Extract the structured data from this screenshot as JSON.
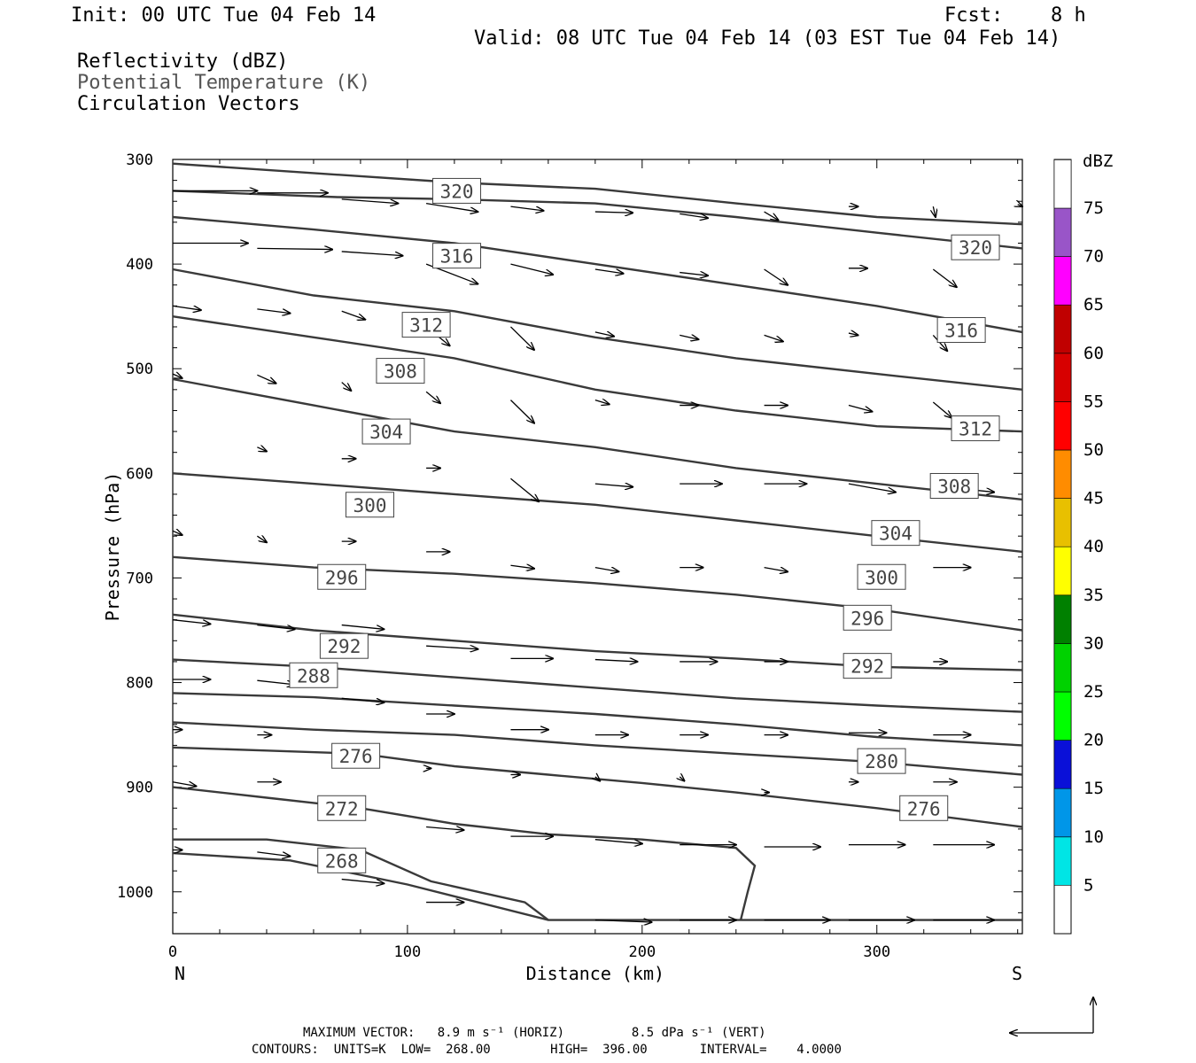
{
  "header": {
    "init": "Init: 00 UTC Tue 04 Feb 14",
    "fcst_label": "Fcst:",
    "fcst_value": "8 h",
    "valid": "Valid: 08 UTC Tue 04 Feb 14 (03 EST Tue 04 Feb 14)"
  },
  "fields": {
    "reflectivity": "Reflectivity (dBZ)",
    "theta": "Potential Temperature (K)",
    "vectors": "Circulation Vectors"
  },
  "footer": {
    "max_vector": "MAXIMUM VECTOR:   8.9 m s⁻¹ (HORIZ)         8.5 dPa s⁻¹ (VERT)",
    "contours": "CONTOURS:  UNITS=K  LOW=  268.00        HIGH=  396.00       INTERVAL=    4.0000"
  },
  "chart_data": {
    "type": "line",
    "xlabel": "Distance (km)",
    "ylabel": "Pressure (hPa)",
    "xlim": [
      0,
      362
    ],
    "ylim": [
      1040,
      300
    ],
    "x_ticks": [
      0,
      100,
      200,
      300
    ],
    "y_ticks": [
      300,
      400,
      500,
      600,
      700,
      800,
      900,
      1000
    ],
    "endpoint_labels": {
      "left": "N",
      "right": "S"
    },
    "contours": [
      {
        "level": "320",
        "points": [
          [
            0,
            304
          ],
          [
            60,
            313
          ],
          [
            120,
            322
          ],
          [
            180,
            328
          ],
          [
            240,
            342
          ],
          [
            300,
            355
          ],
          [
            362,
            362
          ]
        ],
        "label_at": [
          121,
          330
        ]
      },
      {
        "level": "320",
        "points": [
          [
            0,
            330
          ],
          [
            70,
            336
          ],
          [
            120,
            338
          ],
          [
            180,
            342
          ],
          [
            240,
            355
          ],
          [
            300,
            370
          ],
          [
            362,
            385
          ]
        ],
        "label_at": [
          342,
          384
        ]
      },
      {
        "level": "316",
        "points": [
          [
            0,
            355
          ],
          [
            60,
            367
          ],
          [
            120,
            380
          ],
          [
            180,
            400
          ],
          [
            240,
            420
          ],
          [
            300,
            440
          ],
          [
            362,
            465
          ]
        ],
        "label_at": [
          121,
          392
        ]
      },
      {
        "level": "316",
        "points": [
          [
            0,
            405
          ],
          [
            60,
            430
          ],
          [
            120,
            445
          ],
          [
            180,
            470
          ],
          [
            240,
            490
          ],
          [
            300,
            505
          ],
          [
            362,
            520
          ]
        ],
        "label_at": [
          336,
          463
        ]
      },
      {
        "level": "312",
        "points": [
          [
            0,
            450
          ],
          [
            60,
            470
          ],
          [
            120,
            490
          ],
          [
            180,
            520
          ],
          [
            240,
            540
          ],
          [
            300,
            555
          ],
          [
            362,
            560
          ]
        ],
        "label_at": [
          108,
          458
        ]
      },
      {
        "level": "312",
        "points": [
          [
            0,
            510
          ],
          [
            60,
            535
          ],
          [
            120,
            560
          ],
          [
            180,
            575
          ],
          [
            240,
            595
          ],
          [
            300,
            610
          ],
          [
            362,
            625
          ]
        ],
        "label_at": [
          342,
          557
        ]
      },
      {
        "level": "308",
        "points": [
          [
            0,
            600
          ],
          [
            60,
            610
          ],
          [
            120,
            620
          ],
          [
            180,
            630
          ],
          [
            240,
            645
          ],
          [
            300,
            660
          ],
          [
            362,
            675
          ]
        ],
        "label_at": [
          97,
          502
        ]
      },
      {
        "level": "308",
        "points": [
          [
            0,
            680
          ],
          [
            60,
            690
          ],
          [
            120,
            696
          ],
          [
            180,
            705
          ],
          [
            240,
            716
          ],
          [
            300,
            730
          ],
          [
            362,
            750
          ]
        ],
        "label_at": [
          333,
          612
        ]
      },
      {
        "level": "304",
        "points": [
          [
            0,
            735
          ],
          [
            60,
            750
          ],
          [
            120,
            760
          ],
          [
            180,
            770
          ],
          [
            240,
            777
          ],
          [
            300,
            785
          ],
          [
            362,
            788
          ]
        ],
        "label_at": [
          91,
          560
        ]
      },
      {
        "level": "304",
        "points": [
          [
            0,
            778
          ],
          [
            60,
            785
          ],
          [
            120,
            795
          ],
          [
            180,
            805
          ],
          [
            240,
            815
          ],
          [
            300,
            822
          ],
          [
            362,
            828
          ]
        ],
        "label_at": [
          308,
          657
        ]
      },
      {
        "level": "300",
        "points": [
          [
            0,
            810
          ],
          [
            60,
            814
          ],
          [
            120,
            822
          ],
          [
            180,
            830
          ],
          [
            240,
            840
          ],
          [
            300,
            852
          ],
          [
            362,
            860
          ]
        ],
        "label_at": [
          84,
          630
        ]
      },
      {
        "level": "300",
        "points": [
          [
            0,
            838
          ],
          [
            60,
            845
          ],
          [
            120,
            850
          ],
          [
            180,
            860
          ],
          [
            240,
            868
          ],
          [
            300,
            876
          ],
          [
            362,
            888
          ]
        ],
        "label_at": [
          302,
          699
        ]
      },
      {
        "level": "296",
        "points": [
          [
            0,
            862
          ],
          [
            40,
            865
          ],
          [
            80,
            868
          ],
          [
            120,
            880
          ],
          [
            160,
            888
          ],
          [
            200,
            896
          ],
          [
            240,
            905
          ],
          [
            300,
            920
          ],
          [
            362,
            938
          ]
        ],
        "label_at": [
          72,
          699
        ]
      },
      {
        "level": "296",
        "points": [
          [
            0,
            900
          ],
          [
            40,
            910
          ],
          [
            80,
            920
          ],
          [
            120,
            935
          ],
          [
            160,
            945
          ],
          [
            200,
            950
          ],
          [
            240,
            958
          ],
          [
            248,
            975
          ],
          [
            245,
            1000
          ],
          [
            242,
            1027
          ]
        ],
        "label_at": [
          296,
          738
        ]
      },
      {
        "level": "292",
        "points": [
          [
            0,
            950
          ],
          [
            40,
            950
          ],
          [
            80,
            960
          ],
          [
            110,
            990
          ],
          [
            150,
            1010
          ],
          [
            160,
            1027
          ]
        ],
        "label_at": [
          73,
          765
        ]
      },
      {
        "level": "292",
        "points": [
          [
            0,
            963
          ],
          [
            50,
            970
          ],
          [
            100,
            993
          ],
          [
            160,
            1027
          ],
          [
            362,
            1027
          ]
        ],
        "label_at": [
          296,
          784
        ]
      }
    ],
    "inline_labels": [
      {
        "text": "288",
        "at": [
          60,
          793
        ]
      },
      {
        "text": "276",
        "at": [
          78,
          870
        ]
      },
      {
        "text": "280",
        "at": [
          302,
          875
        ]
      },
      {
        "text": "272",
        "at": [
          72,
          920
        ]
      },
      {
        "text": "276",
        "at": [
          320,
          920
        ]
      },
      {
        "text": "268",
        "at": [
          72,
          970
        ]
      }
    ],
    "colorbar": {
      "title": "dBZ",
      "levels": [
        "5",
        "10",
        "15",
        "20",
        "25",
        "30",
        "35",
        "40",
        "45",
        "50",
        "55",
        "60",
        "65",
        "70",
        "75"
      ],
      "colors": [
        "#00e5e5",
        "#0096e8",
        "#0a10d8",
        "#00ff00",
        "#00d200",
        "#008000",
        "#ffff00",
        "#e8c000",
        "#ff8c00",
        "#ff0000",
        "#d70000",
        "#c00000",
        "#ff00ff",
        "#9955c8",
        "#ffffff"
      ]
    },
    "vectors": [
      [
        0,
        330,
        36,
        0
      ],
      [
        36,
        332,
        66,
        0
      ],
      [
        72,
        338,
        96,
        4
      ],
      [
        108,
        342,
        130,
        8
      ],
      [
        144,
        345,
        158,
        4
      ],
      [
        180,
        350,
        196,
        1
      ],
      [
        216,
        352,
        228,
        4
      ],
      [
        252,
        350,
        258,
        8
      ],
      [
        288,
        345,
        292,
        0
      ],
      [
        324,
        345,
        325,
        10
      ],
      [
        360,
        343,
        362,
        2
      ],
      [
        0,
        380,
        32,
        0
      ],
      [
        36,
        385,
        68,
        1
      ],
      [
        72,
        388,
        98,
        4
      ],
      [
        108,
        400,
        130,
        19
      ],
      [
        144,
        400,
        162,
        10
      ],
      [
        180,
        405,
        192,
        4
      ],
      [
        216,
        408,
        228,
        3
      ],
      [
        252,
        405,
        262,
        15
      ],
      [
        288,
        404,
        296,
        0
      ],
      [
        324,
        405,
        334,
        17
      ],
      [
        0,
        440,
        12,
        4
      ],
      [
        36,
        443,
        50,
        4
      ],
      [
        72,
        445,
        82,
        8
      ],
      [
        108,
        460,
        118,
        18
      ],
      [
        144,
        460,
        154,
        22
      ],
      [
        180,
        465,
        188,
        4
      ],
      [
        216,
        468,
        224,
        4
      ],
      [
        252,
        468,
        260,
        6
      ],
      [
        288,
        466,
        292,
        2
      ],
      [
        324,
        468,
        330,
        15
      ],
      [
        0,
        505,
        4,
        4
      ],
      [
        36,
        506,
        44,
        8
      ],
      [
        72,
        513,
        76,
        8
      ],
      [
        108,
        522,
        114,
        11
      ],
      [
        144,
        530,
        154,
        22
      ],
      [
        180,
        530,
        186,
        4
      ],
      [
        216,
        535,
        224,
        0
      ],
      [
        252,
        535,
        262,
        0
      ],
      [
        288,
        535,
        298,
        6
      ],
      [
        324,
        532,
        332,
        15
      ],
      [
        36,
        575,
        40,
        4
      ],
      [
        72,
        586,
        78,
        0
      ],
      [
        108,
        595,
        114,
        0
      ],
      [
        144,
        605,
        156,
        22
      ],
      [
        180,
        610,
        196,
        3
      ],
      [
        216,
        610,
        234,
        0
      ],
      [
        252,
        610,
        270,
        0
      ],
      [
        288,
        610,
        308,
        8
      ],
      [
        324,
        612,
        350,
        6
      ],
      [
        0,
        655,
        4,
        4
      ],
      [
        36,
        660,
        40,
        6
      ],
      [
        72,
        665,
        78,
        0
      ],
      [
        108,
        675,
        118,
        0
      ],
      [
        144,
        688,
        154,
        3
      ],
      [
        180,
        690,
        190,
        4
      ],
      [
        216,
        690,
        226,
        0
      ],
      [
        252,
        690,
        262,
        4
      ],
      [
        324,
        690,
        340,
        0
      ],
      [
        0,
        740,
        16,
        4
      ],
      [
        36,
        745,
        52,
        4
      ],
      [
        72,
        745,
        90,
        4
      ],
      [
        108,
        765,
        130,
        3
      ],
      [
        144,
        777,
        162,
        0
      ],
      [
        180,
        778,
        198,
        2
      ],
      [
        216,
        780,
        232,
        0
      ],
      [
        252,
        780,
        262,
        0
      ],
      [
        288,
        780,
        304,
        0
      ],
      [
        324,
        780,
        330,
        0
      ],
      [
        0,
        797,
        16,
        0
      ],
      [
        36,
        798,
        52,
        4
      ],
      [
        72,
        815,
        90,
        4
      ],
      [
        108,
        830,
        120,
        0
      ],
      [
        144,
        845,
        160,
        0
      ],
      [
        180,
        850,
        194,
        0
      ],
      [
        216,
        850,
        228,
        0
      ],
      [
        252,
        850,
        262,
        0
      ],
      [
        288,
        848,
        304,
        0
      ],
      [
        324,
        850,
        340,
        0
      ],
      [
        0,
        845,
        4,
        0
      ],
      [
        36,
        850,
        42,
        0
      ],
      [
        108,
        882,
        110,
        0
      ],
      [
        144,
        888,
        148,
        0
      ],
      [
        180,
        890,
        182,
        4
      ],
      [
        216,
        890,
        218,
        4
      ],
      [
        252,
        905,
        254,
        0
      ],
      [
        288,
        895,
        292,
        0
      ],
      [
        324,
        895,
        334,
        0
      ],
      [
        0,
        895,
        10,
        4
      ],
      [
        36,
        895,
        46,
        0
      ],
      [
        108,
        938,
        124,
        3
      ],
      [
        144,
        947,
        162,
        0
      ],
      [
        180,
        950,
        200,
        4
      ],
      [
        216,
        955,
        240,
        0
      ],
      [
        252,
        957,
        276,
        0
      ],
      [
        288,
        955,
        312,
        0
      ],
      [
        324,
        955,
        350,
        0
      ],
      [
        0,
        960,
        4,
        0
      ],
      [
        36,
        962,
        50,
        4
      ],
      [
        72,
        988,
        90,
        4
      ],
      [
        108,
        1010,
        124,
        0
      ],
      [
        180,
        1027,
        204,
        2
      ],
      [
        216,
        1027,
        240,
        0
      ],
      [
        252,
        1027,
        280,
        0
      ],
      [
        288,
        1027,
        316,
        0
      ],
      [
        324,
        1027,
        350,
        0
      ]
    ]
  }
}
